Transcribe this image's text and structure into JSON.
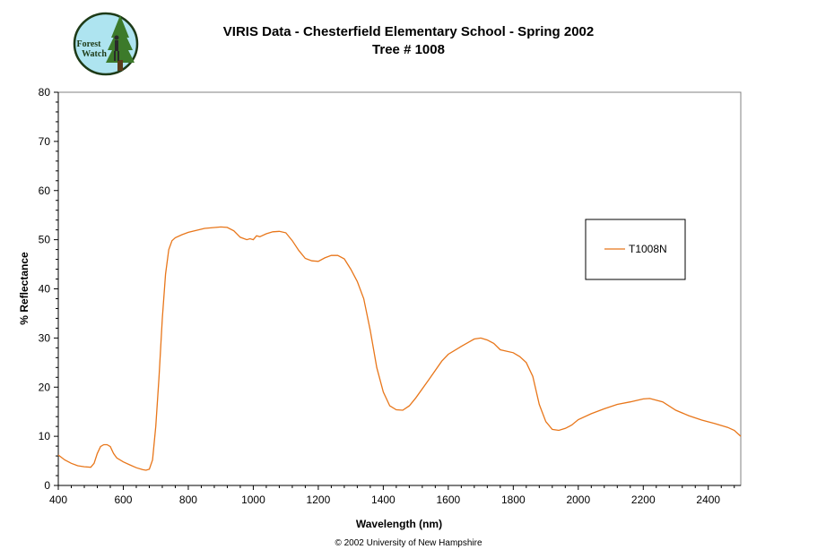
{
  "logo": {
    "text_line1": "Forest",
    "text_line2": "Watch"
  },
  "header": {
    "title": "VIRIS Data - Chesterfield Elementary School - Spring 2002",
    "subtitle": "Tree # 1008"
  },
  "footer": {
    "copyright": "© 2002 University of New Hampshire"
  },
  "colors": {
    "series": "#e8761a",
    "sky": "#aee4f0",
    "tree": "#3c7a2a"
  },
  "chart_data": {
    "type": "line",
    "title": "VIRIS Data - Chesterfield Elementary School - Spring 2002",
    "subtitle": "Tree # 1008",
    "xlabel": "Wavelength (nm)",
    "ylabel": "% Reflectance",
    "xlim": [
      400,
      2500
    ],
    "ylim": [
      0,
      80
    ],
    "xticks": [
      400,
      600,
      800,
      1000,
      1200,
      1400,
      1600,
      1800,
      2000,
      2200,
      2400
    ],
    "yticks": [
      0,
      10,
      20,
      30,
      40,
      50,
      60,
      70,
      80
    ],
    "grid": false,
    "legend_position": "right",
    "series": [
      {
        "name": "T1008N",
        "color": "#e8761a",
        "x": [
          400,
          420,
          440,
          460,
          480,
          500,
          510,
          520,
          530,
          540,
          550,
          560,
          570,
          580,
          600,
          620,
          640,
          660,
          670,
          680,
          690,
          700,
          710,
          720,
          730,
          740,
          750,
          760,
          780,
          800,
          850,
          900,
          920,
          940,
          960,
          980,
          990,
          1000,
          1010,
          1020,
          1040,
          1060,
          1080,
          1100,
          1120,
          1140,
          1160,
          1180,
          1200,
          1220,
          1240,
          1260,
          1280,
          1300,
          1320,
          1340,
          1360,
          1380,
          1400,
          1420,
          1440,
          1460,
          1480,
          1500,
          1540,
          1580,
          1600,
          1640,
          1680,
          1700,
          1720,
          1740,
          1760,
          1800,
          1820,
          1840,
          1860,
          1880,
          1900,
          1920,
          1940,
          1960,
          1980,
          2000,
          2040,
          2080,
          2120,
          2160,
          2200,
          2220,
          2260,
          2300,
          2340,
          2380,
          2420,
          2460,
          2480,
          2500
        ],
        "y": [
          6.2,
          5.2,
          4.5,
          4.0,
          3.8,
          3.7,
          4.5,
          6.5,
          7.9,
          8.3,
          8.3,
          7.9,
          6.5,
          5.6,
          4.8,
          4.2,
          3.6,
          3.2,
          3.1,
          3.3,
          5.2,
          12.0,
          22.0,
          34.0,
          43.0,
          48.0,
          49.8,
          50.4,
          51.0,
          51.5,
          52.3,
          52.6,
          52.5,
          51.8,
          50.5,
          50.0,
          50.2,
          50.0,
          50.8,
          50.6,
          51.2,
          51.6,
          51.7,
          51.4,
          49.8,
          47.8,
          46.2,
          45.7,
          45.6,
          46.3,
          46.8,
          46.8,
          46.1,
          44.0,
          41.5,
          38.0,
          31.5,
          24.0,
          19.0,
          16.2,
          15.4,
          15.3,
          16.2,
          17.8,
          21.5,
          25.3,
          26.7,
          28.3,
          29.8,
          30.0,
          29.6,
          28.9,
          27.6,
          27.0,
          26.2,
          25.0,
          22.2,
          16.5,
          13.0,
          11.4,
          11.2,
          11.6,
          12.3,
          13.4,
          14.6,
          15.6,
          16.5,
          17.0,
          17.6,
          17.7,
          17.0,
          15.3,
          14.2,
          13.3,
          12.6,
          11.8,
          11.2,
          10.0
        ]
      }
    ]
  }
}
